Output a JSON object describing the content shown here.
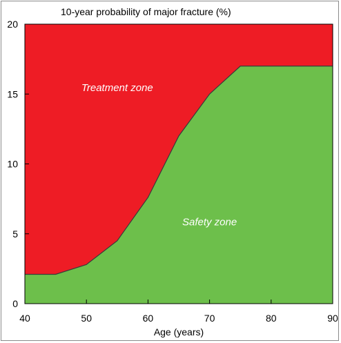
{
  "chart_data": {
    "type": "area",
    "title": "10-year probability of major fracture (%)",
    "xlabel": "Age (years)",
    "ylabel": "",
    "xlim": [
      40,
      90
    ],
    "ylim": [
      0,
      20
    ],
    "xticks": [
      40,
      50,
      60,
      70,
      80,
      90
    ],
    "yticks": [
      0,
      5,
      10,
      15,
      20
    ],
    "threshold": {
      "x": [
        40,
        45,
        50,
        55,
        60,
        65,
        70,
        75,
        80,
        85,
        90
      ],
      "y": [
        2.1,
        2.1,
        2.8,
        4.5,
        7.6,
        12.0,
        15.0,
        17.0,
        17.0,
        17.0,
        17.0
      ]
    },
    "regions": [
      {
        "name": "Treatment zone",
        "position": "above",
        "color": "#ee1c25",
        "label_at": [
          55,
          15.2
        ]
      },
      {
        "name": "Safety zone",
        "position": "below",
        "color": "#6dbf4b",
        "label_at": [
          70,
          5.6
        ]
      }
    ],
    "line_color": "#3a3a3a",
    "grid": false
  }
}
